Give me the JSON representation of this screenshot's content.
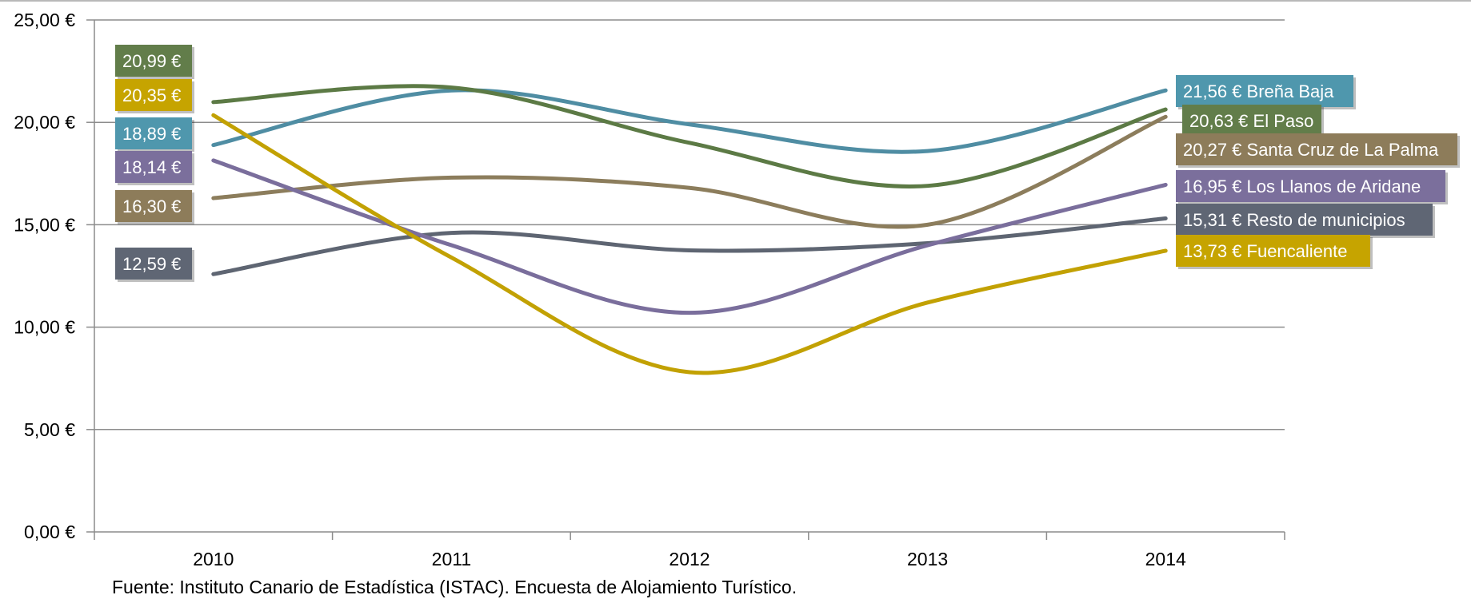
{
  "chart_data": {
    "type": "line",
    "categories": [
      "2010",
      "2011",
      "2012",
      "2013",
      "2014"
    ],
    "y_ticks": [
      "0,00 €",
      "5,00 €",
      "10,00 €",
      "15,00 €",
      "20,00 €",
      "25,00 €"
    ],
    "ylim": [
      0,
      25
    ],
    "grid": true,
    "series": [
      {
        "name": "Breña Baja",
        "color": "#4f8da3",
        "values": [
          18.89,
          21.56,
          19.9,
          18.6,
          21.56
        ],
        "start_label": "18,89 €",
        "end_label": "21,56 € Breña Baja",
        "badge_color": "#4f97ad"
      },
      {
        "name": "El Paso",
        "color": "#5c7a45",
        "values": [
          20.99,
          21.7,
          19.0,
          16.9,
          20.63
        ],
        "start_label": "20,99 €",
        "end_label": "20,63 € El Paso",
        "badge_color": "#627d4a"
      },
      {
        "name": "Santa Cruz de La Palma",
        "color": "#8c7d5c",
        "values": [
          16.3,
          17.3,
          16.8,
          15.0,
          20.27
        ],
        "start_label": "16,30 €",
        "end_label": "20,27 € Santa Cruz de La Palma",
        "badge_color": "#8d7c5a"
      },
      {
        "name": "Los Llanos de Aridane",
        "color": "#7a6e9c",
        "values": [
          18.14,
          14.0,
          10.7,
          14.0,
          16.95
        ],
        "start_label": "18,14 €",
        "end_label": "16,95 € Los Llanos de Aridane",
        "badge_color": "#7b6f9c"
      },
      {
        "name": "Resto de municipios",
        "color": "#5e6572",
        "values": [
          12.59,
          14.6,
          13.75,
          14.1,
          15.31
        ],
        "start_label": "12,59 €",
        "end_label": "15,31 € Resto de municipios",
        "badge_color": "#5f6674"
      },
      {
        "name": "Fuencaliente",
        "color": "#c2a103",
        "values": [
          20.35,
          13.4,
          7.8,
          11.2,
          13.73
        ],
        "start_label": "20,35 €",
        "end_label": "13,73 € Fuencaliente",
        "badge_color": "#c6a400"
      }
    ]
  },
  "source": "Fuente: Instituto Canario de  Estadística (ISTAC).  Encuesta de Alojamiento Turístico."
}
